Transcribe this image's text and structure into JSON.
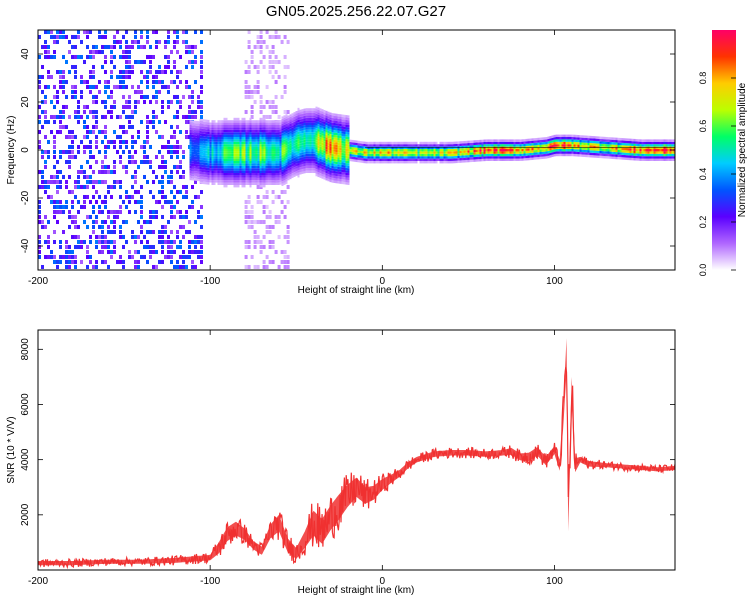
{
  "title": "GN05.2025.256.22.07.G27",
  "chart_data": [
    {
      "type": "heatmap",
      "xlabel": "Height of straight line (km)",
      "ylabel": "Frequency (Hz)",
      "xlim": [
        -200,
        170
      ],
      "ylim": [
        -50,
        50
      ],
      "xticks": [
        -200,
        -100,
        0,
        100
      ],
      "yticks": [
        -40,
        -20,
        0,
        20,
        40
      ],
      "colorbar": {
        "label": "Normalized spectral amplitude",
        "ticks": [
          "0.0",
          "0.2",
          "0.4",
          "0.6",
          "0.8"
        ],
        "colors": [
          "#ffffff",
          "#b066ff",
          "#5a00ff",
          "#0055ff",
          "#00ccff",
          "#00ff66",
          "#bbff00",
          "#ffcc00",
          "#ff3300",
          "#ff0066"
        ]
      },
      "colors": {
        "noise": "#7a3cf0",
        "faint": "#d8c6ff",
        "signal_low": "#2a00d8",
        "signal_mid": "#00d8c8",
        "signal_high": "#ff2a4a"
      },
      "ridge": {
        "x": [
          -112,
          -100,
          -90,
          -80,
          -70,
          -60,
          -50,
          -45,
          -40,
          -30,
          -20,
          -10,
          0,
          20,
          40,
          60,
          80,
          95,
          100,
          105,
          110,
          130,
          150,
          170
        ],
        "y": [
          0,
          -1,
          -1,
          -1,
          -1,
          -1,
          3,
          4,
          4,
          1,
          0,
          -1,
          -1,
          -1,
          -1,
          0,
          0,
          1,
          2,
          2,
          2,
          1,
          0,
          0
        ],
        "intensity": [
          0.35,
          0.45,
          0.55,
          0.6,
          0.6,
          0.55,
          0.55,
          0.55,
          0.6,
          0.85,
          0.7,
          0.7,
          0.75,
          0.65,
          0.7,
          0.9,
          0.85,
          0.8,
          0.9,
          0.9,
          0.8,
          0.75,
          0.9,
          0.95
        ]
      }
    },
    {
      "type": "line",
      "xlabel": "Height of straight line (km)",
      "ylabel": "SNR (10 * V/V)",
      "xlim": [
        -200,
        170
      ],
      "ylim": [
        0,
        8700
      ],
      "xticks": [
        -200,
        -100,
        0,
        100
      ],
      "yticks": [
        2000,
        4000,
        6000,
        8000
      ],
      "series": [
        {
          "color": "#f03030",
          "x": [
            -200,
            -180,
            -160,
            -140,
            -120,
            -100,
            -95,
            -90,
            -85,
            -80,
            -75,
            -70,
            -65,
            -60,
            -55,
            -50,
            -45,
            -40,
            -35,
            -30,
            -25,
            -20,
            -15,
            -10,
            -5,
            0,
            5,
            10,
            15,
            20,
            25,
            30,
            40,
            50,
            60,
            70,
            75,
            80,
            85,
            90,
            95,
            100,
            103,
            105,
            107,
            108,
            110,
            112,
            115,
            120,
            130,
            140,
            150,
            160,
            170
          ],
          "y": [
            250,
            250,
            300,
            300,
            350,
            450,
            800,
            1300,
            1500,
            1300,
            900,
            700,
            1400,
            1700,
            900,
            600,
            1100,
            1700,
            1400,
            1900,
            2300,
            2700,
            3000,
            2700,
            2800,
            3100,
            3300,
            3500,
            3800,
            4000,
            4100,
            4200,
            4250,
            4250,
            4200,
            4250,
            4300,
            4100,
            4100,
            4300,
            3950,
            4350,
            3800,
            5500,
            7800,
            2000,
            6500,
            3800,
            4000,
            3850,
            3800,
            3750,
            3700,
            3650,
            3700
          ],
          "noise": [
            150,
            150,
            150,
            150,
            180,
            200,
            400,
            500,
            500,
            400,
            300,
            300,
            500,
            600,
            500,
            400,
            600,
            900,
            900,
            900,
            900,
            800,
            700,
            600,
            500,
            400,
            300,
            250,
            220,
            200,
            200,
            200,
            200,
            200,
            200,
            200,
            250,
            250,
            300,
            300,
            300,
            300,
            400,
            800,
            1200,
            1200,
            1000,
            500,
            200,
            200,
            150,
            150,
            150,
            150,
            150
          ]
        }
      ]
    }
  ]
}
